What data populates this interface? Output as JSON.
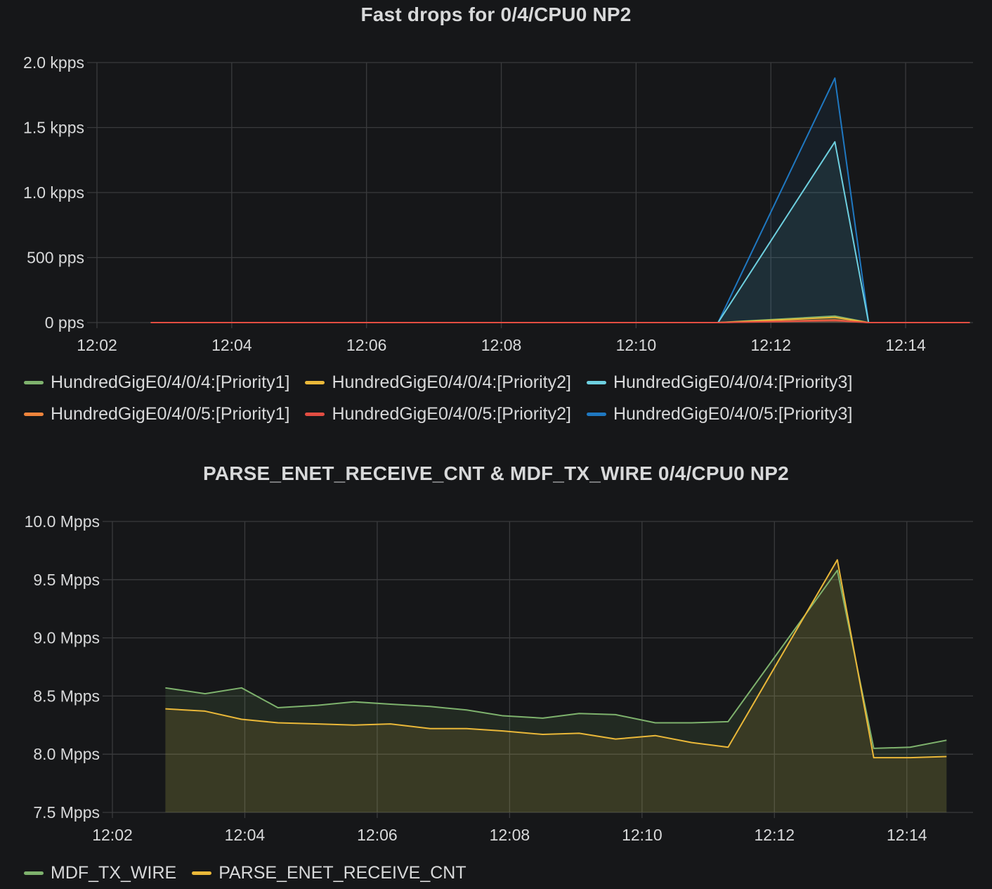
{
  "chart_data": [
    {
      "type": "area",
      "title": "Fast drops for 0/4/CPU0 NP2",
      "x_ticks": [
        "12:02",
        "12:04",
        "12:06",
        "12:08",
        "12:10",
        "12:12",
        "12:14"
      ],
      "y_ticks": [
        "0 pps",
        "500 pps",
        "1.0 kpps",
        "1.5 kpps",
        "2.0 kpps"
      ],
      "ylim": [
        0,
        2000
      ],
      "xlim": [
        "12:02",
        "12:15"
      ],
      "grid": true,
      "legend": "bottom",
      "x": [
        "12:02:48",
        "12:11:13",
        "12:12:57",
        "12:13:27",
        "12:14:57"
      ],
      "series": [
        {
          "name": "HundredGigE0/4/0/4:[Priority1]",
          "color": "#7eb26d",
          "values": [
            0,
            0,
            50,
            0,
            0
          ]
        },
        {
          "name": "HundredGigE0/4/0/4:[Priority2]",
          "color": "#eab839",
          "values": [
            0,
            0,
            40,
            0,
            0
          ]
        },
        {
          "name": "HundredGigE0/4/0/4:[Priority3]",
          "color": "#6ed0e0",
          "values": [
            0,
            0,
            1390,
            0,
            0
          ]
        },
        {
          "name": "HundredGigE0/4/0/5:[Priority1]",
          "color": "#ef843c",
          "values": [
            0,
            0,
            20,
            0,
            0
          ]
        },
        {
          "name": "HundredGigE0/4/0/5:[Priority2]",
          "color": "#e24d42",
          "values": [
            0,
            0,
            15,
            0,
            0
          ]
        },
        {
          "name": "HundredGigE0/4/0/5:[Priority3]",
          "color": "#1f78c1",
          "values": [
            0,
            0,
            1880,
            0,
            0
          ]
        }
      ]
    },
    {
      "type": "area",
      "title": "PARSE_ENET_RECEIVE_CNT & MDF_TX_WIRE 0/4/CPU0 NP2",
      "x_ticks": [
        "12:02",
        "12:04",
        "12:06",
        "12:08",
        "12:10",
        "12:12",
        "12:14"
      ],
      "y_ticks": [
        "7.5 Mpps",
        "8.0 Mpps",
        "8.5 Mpps",
        "9.0 Mpps",
        "9.5 Mpps",
        "10.0 Mpps"
      ],
      "ylim": [
        7.5,
        10.0
      ],
      "xlim": [
        "12:02",
        "12:15"
      ],
      "grid": true,
      "legend": "bottom",
      "x": [
        "12:02:48",
        "12:03:24",
        "12:03:57",
        "12:04:30",
        "12:05:06",
        "12:05:39",
        "12:06:12",
        "12:06:48",
        "12:07:21",
        "12:07:54",
        "12:08:30",
        "12:09:03",
        "12:09:36",
        "12:10:12",
        "12:10:45",
        "12:11:18",
        "12:12:57",
        "12:13:30",
        "12:14:03",
        "12:14:36"
      ],
      "series": [
        {
          "name": "MDF_TX_WIRE",
          "color": "#7eb26d",
          "values": [
            8.57,
            8.52,
            8.57,
            8.4,
            8.42,
            8.45,
            8.43,
            8.41,
            8.38,
            8.33,
            8.31,
            8.35,
            8.34,
            8.27,
            8.27,
            8.28,
            9.58,
            8.05,
            8.06,
            8.12
          ]
        },
        {
          "name": "PARSE_ENET_RECEIVE_CNT",
          "color": "#eab839",
          "values": [
            8.39,
            8.37,
            8.3,
            8.27,
            8.26,
            8.25,
            8.26,
            8.22,
            8.22,
            8.2,
            8.17,
            8.18,
            8.13,
            8.16,
            8.1,
            8.06,
            9.67,
            7.97,
            7.97,
            7.98
          ]
        }
      ]
    }
  ]
}
